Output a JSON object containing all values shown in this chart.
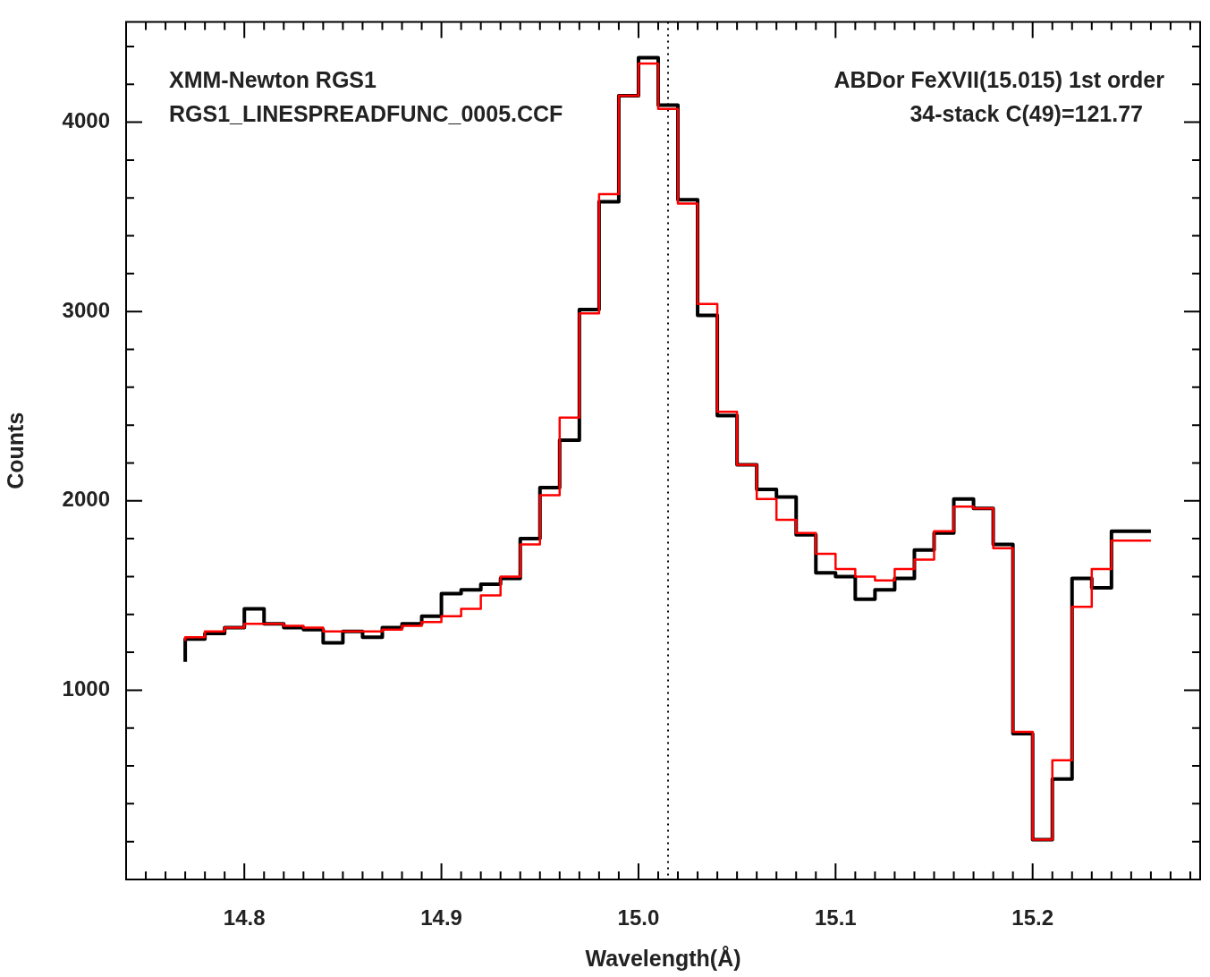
{
  "chart_data": {
    "type": "step",
    "xlabel": "Wavelength(Å)",
    "ylabel": "Counts",
    "annotations": [
      "XMM-Newton RGS1",
      "RGS1_LINESPREADFUNC_0005.CCF",
      "ABDor FeXVII(15.015) 1st order",
      "34-stack C(49)=121.77"
    ],
    "x": [
      14.77,
      14.78,
      14.79,
      14.8,
      14.81,
      14.82,
      14.83,
      14.84,
      14.85,
      14.86,
      14.87,
      14.88,
      14.89,
      14.9,
      14.91,
      14.92,
      14.93,
      14.94,
      14.95,
      14.96,
      14.97,
      14.98,
      14.99,
      15.0,
      15.01,
      15.02,
      15.03,
      15.04,
      15.05,
      15.06,
      15.07,
      15.08,
      15.09,
      15.1,
      15.11,
      15.12,
      15.13,
      15.14,
      15.15,
      15.16,
      15.17,
      15.18,
      15.19,
      15.2,
      15.21,
      15.22,
      15.23,
      15.24,
      15.25,
      15.26
    ],
    "series": [
      {
        "color": "#000000",
        "values": [
          1150,
          1270,
          1300,
          1330,
          1430,
          1350,
          1330,
          1320,
          1250,
          1310,
          1280,
          1330,
          1350,
          1390,
          1510,
          1530,
          1560,
          1590,
          1800,
          2070,
          2320,
          3010,
          3580,
          4140,
          4340,
          4090,
          3590,
          2980,
          2450,
          2190,
          2060,
          2020,
          1820,
          1620,
          1600,
          1480,
          1530,
          1590,
          1740,
          1830,
          2010,
          1960,
          1770,
          770,
          210,
          530,
          1590,
          1540,
          1840,
          1840
        ]
      },
      {
        "color": "#ff0000",
        "values": [
          1260,
          1280,
          1310,
          1330,
          1350,
          1350,
          1340,
          1330,
          1310,
          1310,
          1310,
          1320,
          1340,
          1360,
          1390,
          1430,
          1500,
          1600,
          1770,
          2030,
          2440,
          2990,
          3620,
          4140,
          4310,
          4070,
          3570,
          3040,
          2470,
          2190,
          2010,
          1900,
          1830,
          1720,
          1640,
          1600,
          1580,
          1640,
          1690,
          1840,
          1970,
          1960,
          1750,
          780,
          210,
          630,
          1440,
          1640,
          1790,
          1790
        ]
      }
    ],
    "xlim": [
      14.74,
      15.285
    ],
    "xticks": [
      {
        "value": 14.74,
        "label": null
      },
      {
        "value": 14.75,
        "label": null
      },
      {
        "value": 14.76,
        "label": null
      },
      {
        "value": 14.77,
        "label": null
      },
      {
        "value": 14.78,
        "label": null
      },
      {
        "value": 14.79,
        "label": null
      },
      {
        "value": 14.8,
        "label": "14.8"
      },
      {
        "value": 14.81,
        "label": null
      },
      {
        "value": 14.82,
        "label": null
      },
      {
        "value": 14.83,
        "label": null
      },
      {
        "value": 14.84,
        "label": null
      },
      {
        "value": 14.85,
        "label": null
      },
      {
        "value": 14.86,
        "label": null
      },
      {
        "value": 14.87,
        "label": null
      },
      {
        "value": 14.88,
        "label": null
      },
      {
        "value": 14.89,
        "label": null
      },
      {
        "value": 14.9,
        "label": "14.9"
      },
      {
        "value": 14.91,
        "label": null
      },
      {
        "value": 14.92,
        "label": null
      },
      {
        "value": 14.93,
        "label": null
      },
      {
        "value": 14.94,
        "label": null
      },
      {
        "value": 14.95,
        "label": null
      },
      {
        "value": 14.96,
        "label": null
      },
      {
        "value": 14.97,
        "label": null
      },
      {
        "value": 14.98,
        "label": null
      },
      {
        "value": 14.99,
        "label": null
      },
      {
        "value": 15.0,
        "label": "15.0"
      },
      {
        "value": 15.01,
        "label": null
      },
      {
        "value": 15.02,
        "label": null
      },
      {
        "value": 15.03,
        "label": null
      },
      {
        "value": 15.04,
        "label": null
      },
      {
        "value": 15.05,
        "label": null
      },
      {
        "value": 15.06,
        "label": null
      },
      {
        "value": 15.07,
        "label": null
      },
      {
        "value": 15.08,
        "label": null
      },
      {
        "value": 15.09,
        "label": null
      },
      {
        "value": 15.1,
        "label": "15.1"
      },
      {
        "value": 15.11,
        "label": null
      },
      {
        "value": 15.12,
        "label": null
      },
      {
        "value": 15.13,
        "label": null
      },
      {
        "value": 15.14,
        "label": null
      },
      {
        "value": 15.15,
        "label": null
      },
      {
        "value": 15.16,
        "label": null
      },
      {
        "value": 15.17,
        "label": null
      },
      {
        "value": 15.18,
        "label": null
      },
      {
        "value": 15.19,
        "label": null
      },
      {
        "value": 15.2,
        "label": "15.2"
      },
      {
        "value": 15.21,
        "label": null
      },
      {
        "value": 15.22,
        "label": null
      },
      {
        "value": 15.23,
        "label": null
      },
      {
        "value": 15.24,
        "label": null
      },
      {
        "value": 15.25,
        "label": null
      },
      {
        "value": 15.26,
        "label": null
      },
      {
        "value": 15.27,
        "label": null
      },
      {
        "value": 15.28,
        "label": null
      }
    ],
    "ylim": [
      0,
      4530
    ],
    "yticks": [
      {
        "value": 200,
        "label": null
      },
      {
        "value": 400,
        "label": null
      },
      {
        "value": 600,
        "label": null
      },
      {
        "value": 800,
        "label": null
      },
      1000,
      {
        "value": 1200,
        "label": null
      },
      {
        "value": 1400,
        "label": null
      },
      {
        "value": 1600,
        "label": null
      },
      {
        "value": 1800,
        "label": null
      },
      2000,
      {
        "value": 2200,
        "label": null
      },
      {
        "value": 2400,
        "label": null
      },
      {
        "value": 2600,
        "label": null
      },
      {
        "value": 2800,
        "label": null
      },
      3000,
      {
        "value": 3200,
        "label": null
      },
      {
        "value": 3400,
        "label": null
      },
      {
        "value": 3600,
        "label": null
      },
      {
        "value": 3800,
        "label": null
      },
      4000,
      {
        "value": 4200,
        "label": null
      },
      {
        "value": 4400,
        "label": null
      }
    ],
    "ref_lines": [
      {
        "axis": "x",
        "value": 15.015,
        "color": "#000000",
        "line_style": "dotted"
      }
    ],
    "grid": false,
    "legend": false
  }
}
